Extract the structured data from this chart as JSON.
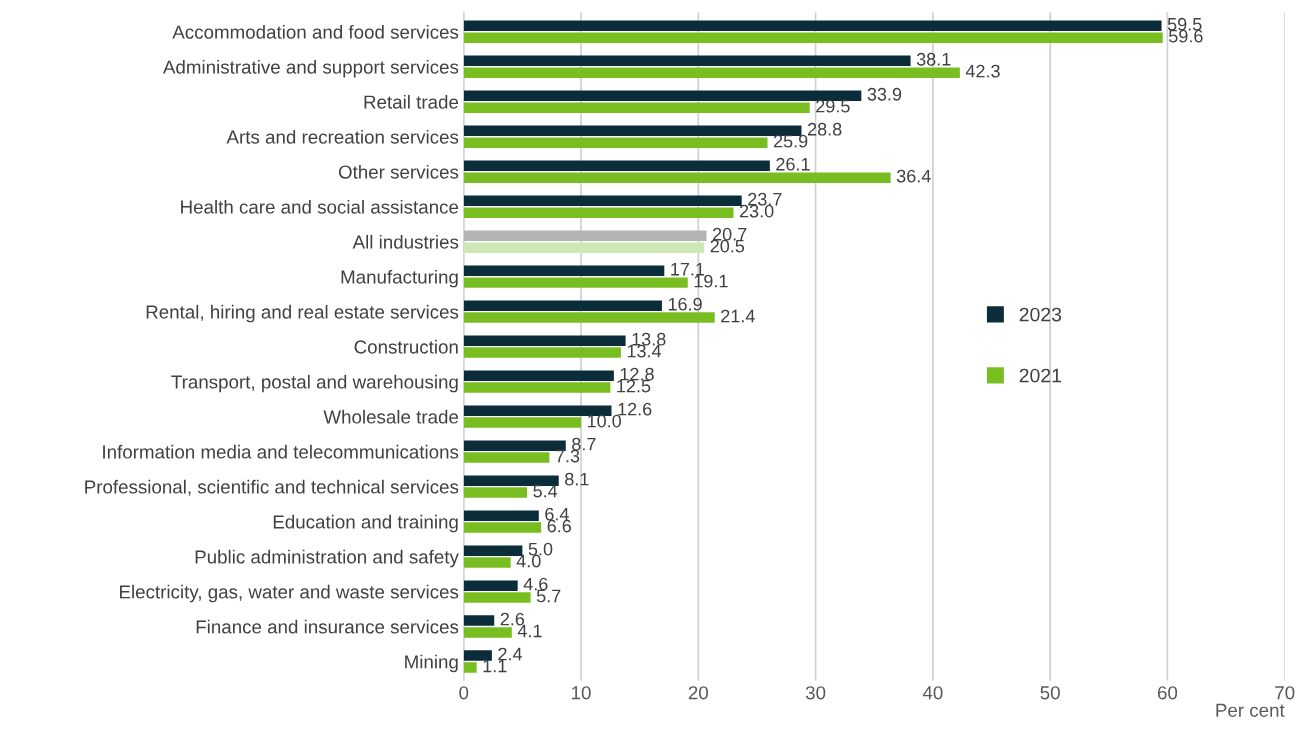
{
  "chart_data": {
    "type": "bar",
    "orientation": "horizontal",
    "xlabel": "Per cent",
    "categories": [
      "Accommodation and food services",
      "Administrative and support services",
      "Retail trade",
      "Arts and recreation services",
      "Other services",
      "Health care and social assistance",
      "All industries",
      "Manufacturing",
      "Rental, hiring and real estate services",
      "Construction",
      "Transport, postal and warehousing",
      "Wholesale trade",
      "Information media and telecommunications",
      "Professional, scientific and technical services",
      "Education and training",
      "Public administration and safety",
      "Electricity, gas, water and waste services",
      "Finance and insurance services",
      "Mining"
    ],
    "series": [
      {
        "name": "2023",
        "color": "#0b2d39",
        "colors": [
          "#0b2d39",
          "#0b2d39",
          "#0b2d39",
          "#0b2d39",
          "#0b2d39",
          "#0b2d39",
          "#b4b4b4",
          "#0b2d39",
          "#0b2d39",
          "#0b2d39",
          "#0b2d39",
          "#0b2d39",
          "#0b2d39",
          "#0b2d39",
          "#0b2d39",
          "#0b2d39",
          "#0b2d39",
          "#0b2d39",
          "#0b2d39"
        ],
        "values": [
          59.5,
          38.1,
          33.9,
          28.8,
          26.1,
          23.7,
          20.7,
          17.1,
          16.9,
          13.8,
          12.8,
          12.6,
          8.7,
          8.1,
          6.4,
          5.0,
          4.6,
          2.6,
          2.4
        ],
        "value_labels": [
          "59.5",
          "38.1",
          "33.9",
          "28.8",
          "26.1",
          "23.7",
          "20.7",
          "17.1",
          "16.9",
          "13.8",
          "12.8",
          "12.6",
          "8.7",
          "8.1",
          "6.4",
          "5.0",
          "4.6",
          "2.6",
          "2.4"
        ]
      },
      {
        "name": "2021",
        "color": "#78be20",
        "colors": [
          "#78be20",
          "#78be20",
          "#78be20",
          "#78be20",
          "#78be20",
          "#78be20",
          "#cde8b5",
          "#78be20",
          "#78be20",
          "#78be20",
          "#78be20",
          "#78be20",
          "#78be20",
          "#78be20",
          "#78be20",
          "#78be20",
          "#78be20",
          "#78be20",
          "#78be20"
        ],
        "values": [
          59.6,
          42.3,
          29.5,
          25.9,
          36.4,
          23.0,
          20.5,
          19.1,
          21.4,
          13.4,
          12.5,
          10.0,
          7.3,
          5.4,
          6.6,
          4.0,
          5.7,
          4.1,
          1.1
        ],
        "value_labels": [
          "59.6",
          "42.3",
          "29.5",
          "25.9",
          "36.4",
          "23.0",
          "20.5",
          "19.1",
          "21.4",
          "13.4",
          "12.5",
          "10.0",
          "7.3",
          "5.4",
          "6.6",
          "4.0",
          "5.7",
          "4.1",
          "1.1"
        ]
      }
    ],
    "xlim": [
      0,
      70
    ],
    "xticks": [
      0,
      10,
      20,
      30,
      40,
      50,
      60,
      70
    ],
    "grid": "x",
    "legend": "right"
  }
}
